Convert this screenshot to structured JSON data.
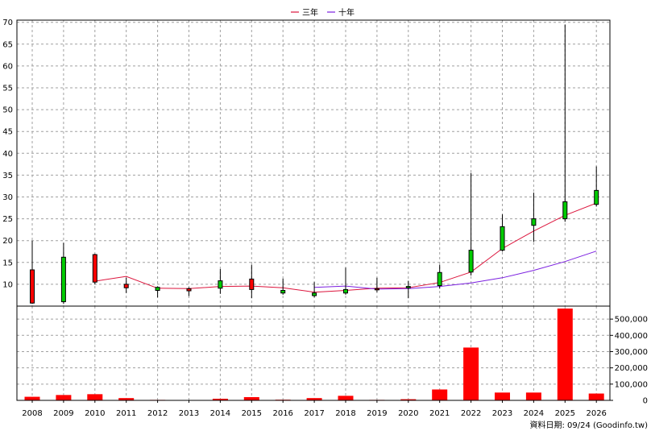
{
  "chart_data": {
    "type": "candlestick",
    "legend": {
      "placement": "top-center",
      "items": [
        {
          "name": "三年",
          "color": "#dc143c"
        },
        {
          "name": "十年",
          "color": "#7b1fe0"
        }
      ]
    },
    "categories": [
      "2008",
      "2009",
      "2010",
      "2011",
      "2012",
      "2013",
      "2014",
      "2015",
      "2016",
      "2017",
      "2018",
      "2019",
      "2020",
      "2021",
      "2022",
      "2023",
      "2024",
      "2025",
      "2026"
    ],
    "price": {
      "ylim": [
        5,
        70.5
      ],
      "yticks": [
        10,
        15,
        20,
        25,
        30,
        35,
        40,
        45,
        50,
        55,
        60,
        65,
        70
      ],
      "grid": true,
      "candles": [
        {
          "open": 5.7,
          "close": 13.3,
          "high": 20.0,
          "low": 5.5
        },
        {
          "open": 16.2,
          "close": 6.0,
          "high": 19.5,
          "low": 5.5
        },
        {
          "open": 10.5,
          "close": 16.8,
          "high": 17.0,
          "low": 10.0
        },
        {
          "open": 9.2,
          "close": 10.0,
          "high": 11.5,
          "low": 8.0
        },
        {
          "open": 9.3,
          "close": 8.6,
          "high": 9.5,
          "low": 7.0
        },
        {
          "open": 8.5,
          "close": 9.0,
          "high": 9.3,
          "low": 7.3
        },
        {
          "open": 10.8,
          "close": 9.1,
          "high": 13.5,
          "low": 7.8
        },
        {
          "open": 8.8,
          "close": 11.2,
          "high": 14.5,
          "low": 6.8
        },
        {
          "open": 8.6,
          "close": 8.0,
          "high": 11.3,
          "low": 7.6
        },
        {
          "open": 8.0,
          "close": 7.4,
          "high": 10.5,
          "low": 7.0
        },
        {
          "open": 8.8,
          "close": 8.0,
          "high": 13.8,
          "low": 7.6
        },
        {
          "open": 8.8,
          "close": 9.0,
          "high": 11.5,
          "low": 8.2
        },
        {
          "open": 9.5,
          "close": 9.2,
          "high": 10.8,
          "low": 6.8
        },
        {
          "open": 12.7,
          "close": 9.7,
          "high": 14.5,
          "low": 9.0
        },
        {
          "open": 17.8,
          "close": 12.8,
          "high": 35.5,
          "low": 12.0
        },
        {
          "open": 23.2,
          "close": 17.8,
          "high": 26.0,
          "low": 17.5
        },
        {
          "open": 25.0,
          "close": 23.5,
          "high": 31.0,
          "low": 19.7
        },
        {
          "open": 28.9,
          "close": 25.0,
          "high": 69.5,
          "low": 24.3
        },
        {
          "open": 31.5,
          "close": 28.3,
          "high": 37.0,
          "low": 27.8
        }
      ],
      "series": [
        {
          "name": "三年",
          "values": [
            null,
            null,
            10.7,
            11.8,
            9.1,
            9.0,
            9.5,
            9.6,
            9.2,
            8.2,
            8.6,
            9.1,
            9.2,
            10.4,
            12.8,
            18.2,
            22.2,
            25.8,
            28.6
          ]
        },
        {
          "name": "十年",
          "values": [
            null,
            null,
            null,
            null,
            null,
            null,
            null,
            null,
            null,
            9.3,
            9.6,
            8.9,
            9.0,
            9.5,
            10.3,
            11.5,
            13.2,
            15.2,
            17.6
          ]
        }
      ]
    },
    "volume": {
      "ylim": [
        0,
        580000
      ],
      "yticks": [
        0,
        100000,
        200000,
        300000,
        400000,
        500000
      ],
      "ytick_labels": [
        "0",
        "100,000",
        "200,000",
        "300,000",
        "400,000",
        "500,000"
      ],
      "grid": true,
      "values": [
        22000,
        33000,
        38000,
        14000,
        3000,
        2000,
        10000,
        20000,
        4000,
        14000,
        28000,
        3000,
        7000,
        67000,
        325000,
        48000,
        48000,
        565000,
        42000
      ]
    },
    "footer_text": "資料日期: 09/24  (Goodinfo.tw)",
    "colors": {
      "up": "#ff0000",
      "down": "#00cc00",
      "volume": "#ff0000",
      "grid": "#a0a0a0"
    }
  }
}
